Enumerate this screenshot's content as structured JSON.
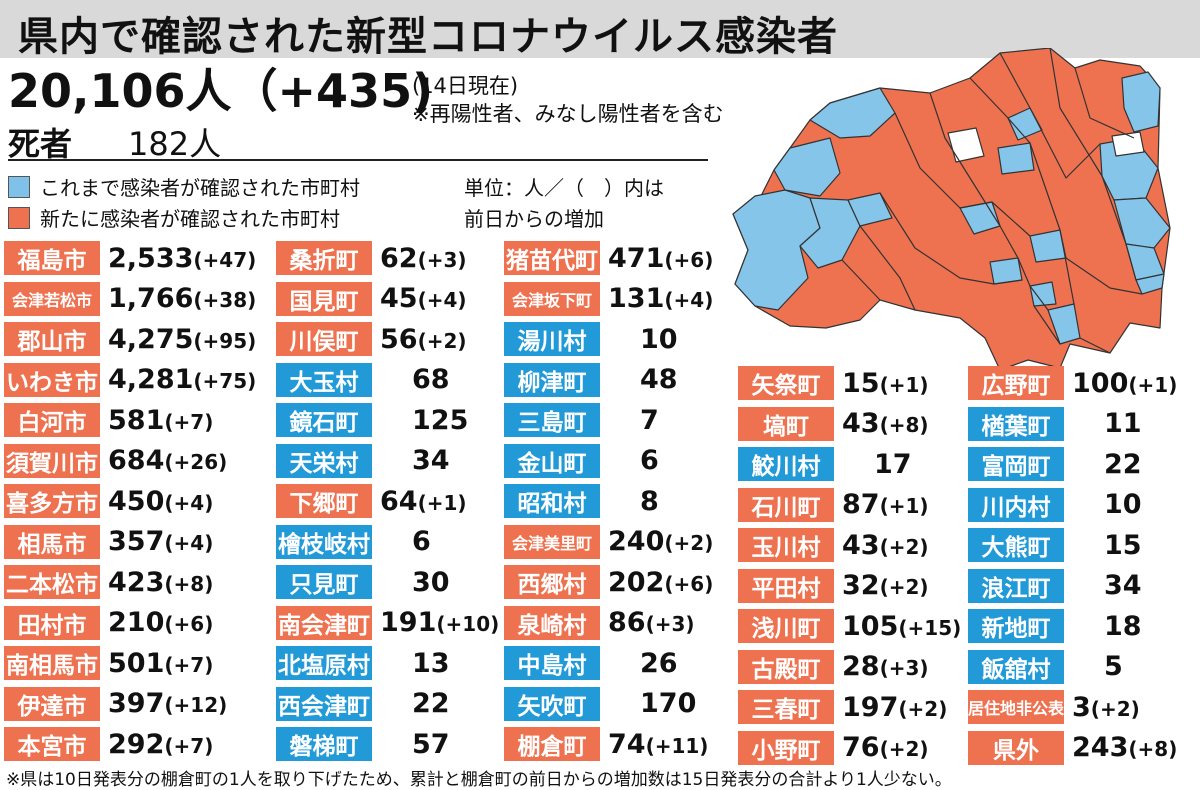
{
  "title": "県内で確認された新型コロナウイルス感染者",
  "total": "20,106人（+435)",
  "date_note": "(14日現在)",
  "incl_note": "※再陽性者、みなし陽性者を含む",
  "deaths": {
    "label": "死者",
    "value": "182人"
  },
  "legend": [
    {
      "text": "これまで感染者が確認された市町村",
      "color": "#7fc1e8"
    },
    {
      "text": "新たに感染者が確認された市町村",
      "color": "#ee7250"
    }
  ],
  "unit_note": [
    "単位：人／（　）内は",
    "前日からの増加"
  ],
  "colors": {
    "new": "#ee7250",
    "prior": "#239ad8",
    "map_new": "#ee7250",
    "map_prior": "#86c5ea",
    "map_none": "#ffffff"
  },
  "columns": [
    [
      {
        "name": "福島市",
        "count": "2,533",
        "inc": "(+47)",
        "status": "new"
      },
      {
        "name": "会津若松市",
        "count": "1,766",
        "inc": "(+38)",
        "status": "new"
      },
      {
        "name": "郡山市",
        "count": "4,275",
        "inc": "(+95)",
        "status": "new"
      },
      {
        "name": "いわき市",
        "count": "4,281",
        "inc": "(+75)",
        "status": "new"
      },
      {
        "name": "白河市",
        "count": "581",
        "inc": "(+7)",
        "status": "new"
      },
      {
        "name": "須賀川市",
        "count": "684",
        "inc": "(+26)",
        "status": "new"
      },
      {
        "name": "喜多方市",
        "count": "450",
        "inc": "(+4)",
        "status": "new"
      },
      {
        "name": "相馬市",
        "count": "357",
        "inc": "(+4)",
        "status": "new"
      },
      {
        "name": "二本松市",
        "count": "423",
        "inc": "(+8)",
        "status": "new"
      },
      {
        "name": "田村市",
        "count": "210",
        "inc": "(+6)",
        "status": "new"
      },
      {
        "name": "南相馬市",
        "count": "501",
        "inc": "(+7)",
        "status": "new"
      },
      {
        "name": "伊達市",
        "count": "397",
        "inc": "(+12)",
        "status": "new"
      },
      {
        "name": "本宮市",
        "count": "292",
        "inc": "(+7)",
        "status": "new"
      }
    ],
    [
      {
        "name": "桑折町",
        "count": "62",
        "inc": "(+3)",
        "status": "new"
      },
      {
        "name": "国見町",
        "count": "45",
        "inc": "(+4)",
        "status": "new"
      },
      {
        "name": "川俣町",
        "count": "56",
        "inc": "(+2)",
        "status": "new"
      },
      {
        "name": "大玉村",
        "count": "68",
        "inc": "",
        "status": "prior"
      },
      {
        "name": "鏡石町",
        "count": "125",
        "inc": "",
        "status": "prior"
      },
      {
        "name": "天栄村",
        "count": "34",
        "inc": "",
        "status": "prior"
      },
      {
        "name": "下郷町",
        "count": "64",
        "inc": "(+1)",
        "status": "new"
      },
      {
        "name": "檜枝岐村",
        "count": "6",
        "inc": "",
        "status": "prior"
      },
      {
        "name": "只見町",
        "count": "30",
        "inc": "",
        "status": "prior"
      },
      {
        "name": "南会津町",
        "count": "191",
        "inc": "(+10)",
        "status": "new"
      },
      {
        "name": "北塩原村",
        "count": "13",
        "inc": "",
        "status": "prior"
      },
      {
        "name": "西会津町",
        "count": "22",
        "inc": "",
        "status": "prior"
      },
      {
        "name": "磐梯町",
        "count": "57",
        "inc": "",
        "status": "prior"
      }
    ],
    [
      {
        "name": "猪苗代町",
        "count": "471",
        "inc": "(+6)",
        "status": "new"
      },
      {
        "name": "会津坂下町",
        "count": "131",
        "inc": "(+4)",
        "status": "new"
      },
      {
        "name": "湯川村",
        "count": "10",
        "inc": "",
        "status": "prior"
      },
      {
        "name": "柳津町",
        "count": "48",
        "inc": "",
        "status": "prior"
      },
      {
        "name": "三島町",
        "count": "7",
        "inc": "",
        "status": "prior"
      },
      {
        "name": "金山町",
        "count": "6",
        "inc": "",
        "status": "prior"
      },
      {
        "name": "昭和村",
        "count": "8",
        "inc": "",
        "status": "prior"
      },
      {
        "name": "会津美里町",
        "count": "240",
        "inc": "(+2)",
        "status": "new"
      },
      {
        "name": "西郷村",
        "count": "202",
        "inc": "(+6)",
        "status": "new"
      },
      {
        "name": "泉崎村",
        "count": "86",
        "inc": "(+3)",
        "status": "new"
      },
      {
        "name": "中島村",
        "count": "26",
        "inc": "",
        "status": "prior"
      },
      {
        "name": "矢吹町",
        "count": "170",
        "inc": "",
        "status": "prior"
      },
      {
        "name": "棚倉町",
        "count": "74",
        "inc": "(+11)",
        "status": "new"
      }
    ],
    [
      {
        "name": "矢祭町",
        "count": "15",
        "inc": "(+1)",
        "status": "new"
      },
      {
        "name": "塙町",
        "count": "43",
        "inc": "(+8)",
        "status": "new"
      },
      {
        "name": "鮫川村",
        "count": "17",
        "inc": "",
        "status": "prior"
      },
      {
        "name": "石川町",
        "count": "87",
        "inc": "(+1)",
        "status": "new"
      },
      {
        "name": "玉川村",
        "count": "43",
        "inc": "(+2)",
        "status": "new"
      },
      {
        "name": "平田村",
        "count": "32",
        "inc": "(+2)",
        "status": "new"
      },
      {
        "name": "浅川町",
        "count": "105",
        "inc": "(+15)",
        "status": "new"
      },
      {
        "name": "古殿町",
        "count": "28",
        "inc": "(+3)",
        "status": "new"
      },
      {
        "name": "三春町",
        "count": "197",
        "inc": "(+2)",
        "status": "new"
      },
      {
        "name": "小野町",
        "count": "76",
        "inc": "(+2)",
        "status": "new"
      }
    ],
    [
      {
        "name": "広野町",
        "count": "100",
        "inc": "(+1)",
        "status": "new"
      },
      {
        "name": "楢葉町",
        "count": "11",
        "inc": "",
        "status": "prior"
      },
      {
        "name": "富岡町",
        "count": "22",
        "inc": "",
        "status": "prior"
      },
      {
        "name": "川内村",
        "count": "10",
        "inc": "",
        "status": "prior"
      },
      {
        "name": "大熊町",
        "count": "15",
        "inc": "",
        "status": "prior"
      },
      {
        "name": "浪江町",
        "count": "34",
        "inc": "",
        "status": "prior"
      },
      {
        "name": "新地町",
        "count": "18",
        "inc": "",
        "status": "prior"
      },
      {
        "name": "飯舘村",
        "count": "5",
        "inc": "",
        "status": "prior"
      },
      {
        "name": "居住地非公表",
        "count": "3",
        "inc": "(+2)",
        "status": "new"
      },
      {
        "name": "県外",
        "count": "243",
        "inc": "(+8)",
        "status": "new"
      }
    ]
  ],
  "footnote": "※県は10日発表分の棚倉町の1人を取り下げたため、累計と棚倉町の前日からの増加数は15日発表分の合計より1人少ない。"
}
